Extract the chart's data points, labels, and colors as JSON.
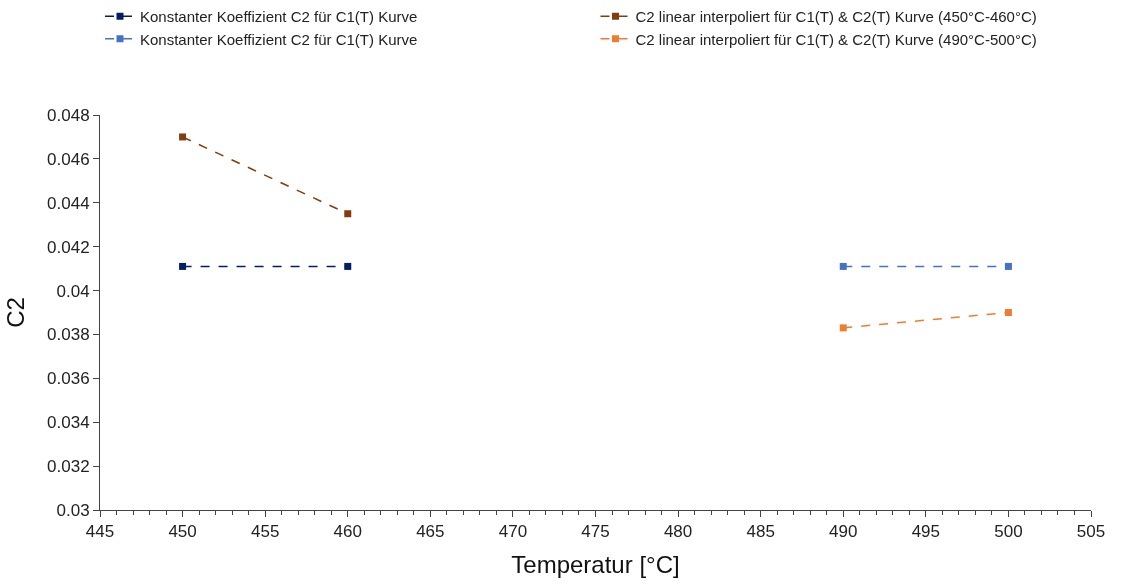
{
  "chart_data": {
    "type": "line",
    "xlabel": "Temperatur [°C]",
    "ylabel": "C2",
    "series": [
      {
        "name": "Konstanter Koeffizient C2 für C1(T) Kurve",
        "color": "#002060",
        "x": [
          450,
          460
        ],
        "values": [
          0.0411,
          0.0411
        ]
      },
      {
        "name": "C2 linear interpoliert für C1(T) & C2(T) Kurve (450°C-460°C)",
        "color": "#843c0c",
        "x": [
          450,
          460
        ],
        "values": [
          0.047,
          0.0435
        ]
      },
      {
        "name": "Konstanter Koeffizient C2 für C1(T) Kurve",
        "color": "#4472c4",
        "x": [
          490,
          500
        ],
        "values": [
          0.0411,
          0.0411
        ]
      },
      {
        "name": "C2 linear interpoliert für C1(T) & C2(T) Kurve (490°C-500°C)",
        "color": "#ed7d31",
        "x": [
          490,
          500
        ],
        "values": [
          0.0383,
          0.039
        ]
      }
    ],
    "xlim": [
      445,
      505
    ],
    "xticks": [
      445,
      450,
      455,
      460,
      465,
      470,
      475,
      480,
      485,
      490,
      495,
      500,
      505
    ],
    "ylim": [
      0.03,
      0.048
    ],
    "yticks": [
      0.03,
      0.032,
      0.034,
      0.036,
      0.038,
      0.04,
      0.042,
      0.044,
      0.046,
      0.048
    ],
    "legend": "top",
    "marker": "square",
    "line_style": "dashed"
  }
}
